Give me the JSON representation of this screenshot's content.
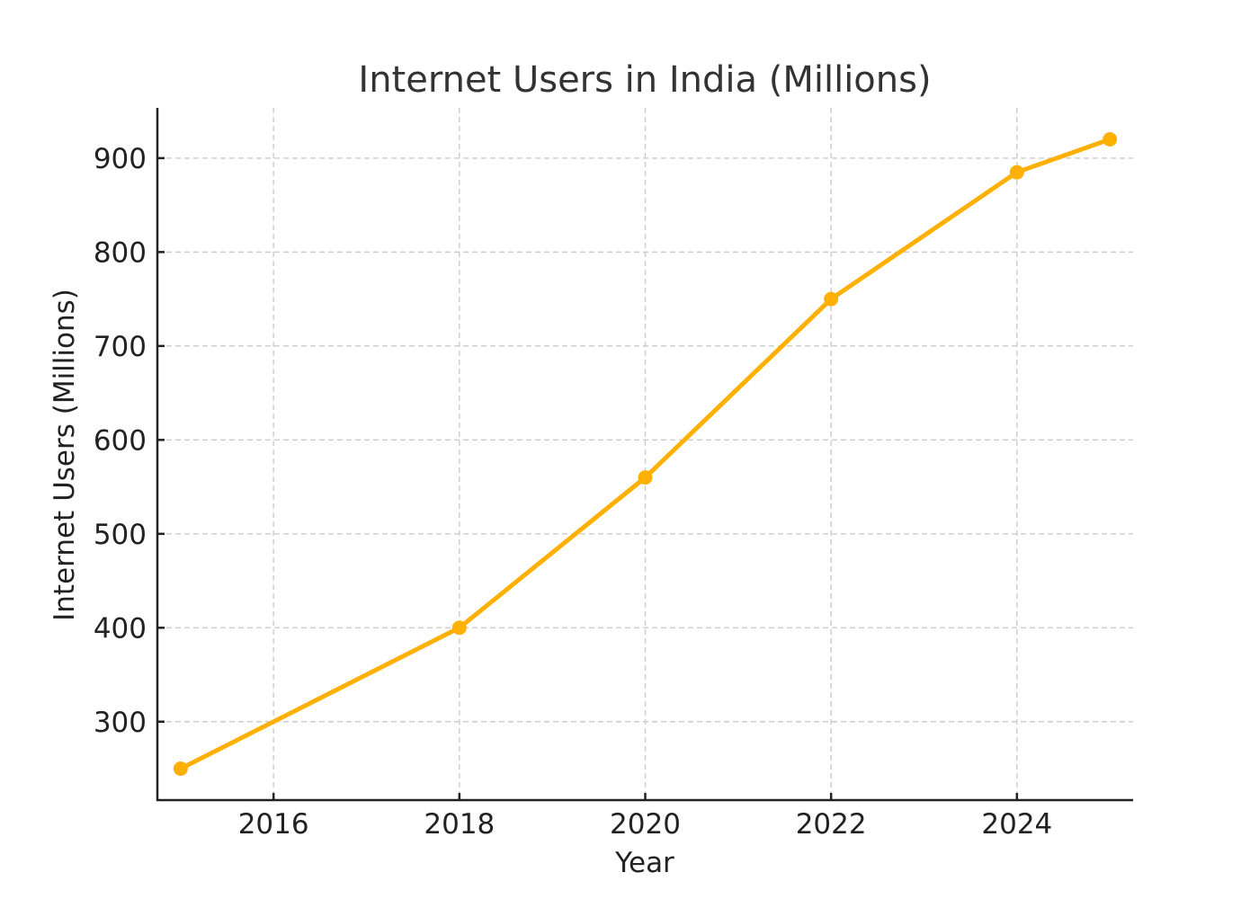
{
  "chart_data": {
    "type": "line",
    "title": "Internet Users in India (Millions)",
    "xlabel": "Year",
    "ylabel": "Internet Users (Millions)",
    "x": [
      2015,
      2018,
      2020,
      2022,
      2024,
      2025
    ],
    "series": [
      {
        "name": "Internet Users",
        "values": [
          250,
          400,
          560,
          750,
          885,
          920
        ],
        "color": "#FFB000",
        "marker": "circle"
      }
    ],
    "xlim": [
      2014.75,
      2025.25
    ],
    "ylim": [
      216.5,
      953.5
    ],
    "xticks": [
      2016,
      2018,
      2020,
      2022,
      2024
    ],
    "yticks": [
      300,
      400,
      500,
      600,
      700,
      800,
      900
    ],
    "xtick_labels": [
      "2016",
      "2018",
      "2020",
      "2022",
      "2024"
    ],
    "ytick_labels": [
      "300",
      "400",
      "500",
      "600",
      "700",
      "800",
      "900"
    ],
    "grid": true,
    "legend": "none"
  }
}
